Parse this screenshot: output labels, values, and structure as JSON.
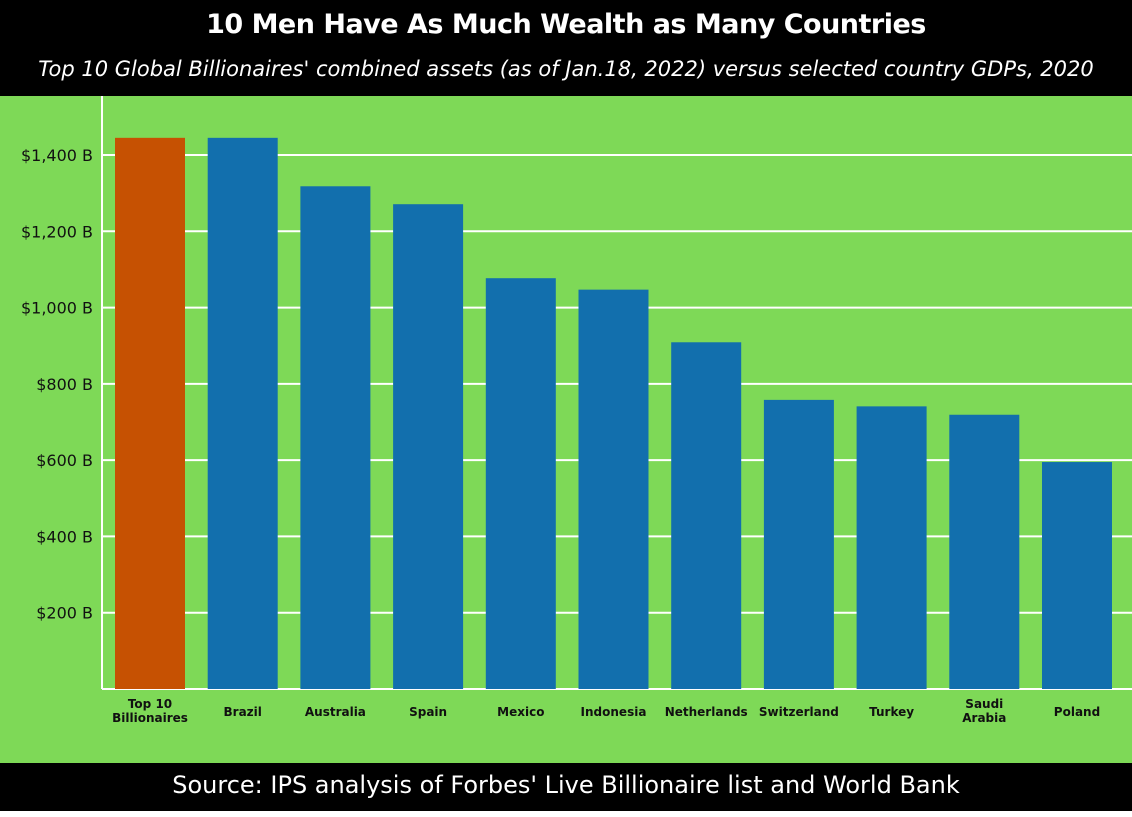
{
  "header": {
    "title": "10 Men Have As Much Wealth as Many Countries",
    "subtitle": "Top 10 Global Billionaires' combined assets (as of Jan.18, 2022) versus selected country GDPs, 2020"
  },
  "footer": {
    "source": "Source: IPS analysis of Forbes' Live Billionaire list and World Bank"
  },
  "colors": {
    "background": "#7ed957",
    "header_bg": "#000000",
    "highlight_bar": "#c65102",
    "country_bar": "#126fad",
    "gridline": "#ffffff"
  },
  "chart_data": {
    "type": "bar",
    "categories": [
      [
        "Top 10",
        "Billionaires"
      ],
      [
        "Brazil"
      ],
      [
        "Australia"
      ],
      [
        "Spain"
      ],
      [
        "Mexico"
      ],
      [
        "Indonesia"
      ],
      [
        "Netherlands"
      ],
      [
        "Switzerland"
      ],
      [
        "Turkey"
      ],
      [
        "Saudi",
        "Arabia"
      ],
      [
        "Poland"
      ]
    ],
    "values": [
      1445,
      1445,
      1318,
      1271,
      1077,
      1047,
      909,
      758,
      741,
      719,
      595
    ],
    "highlight_index": 0,
    "ylim": [
      0,
      1550
    ],
    "yticks": [
      200,
      400,
      600,
      800,
      1000,
      1200,
      1400
    ],
    "ytick_labels": [
      "$200 B",
      "$400 B",
      "$600 B",
      "$800 B",
      "$1,000 B",
      "$1,200 B",
      "$1,400 B"
    ],
    "grid": true,
    "legend": "none"
  }
}
